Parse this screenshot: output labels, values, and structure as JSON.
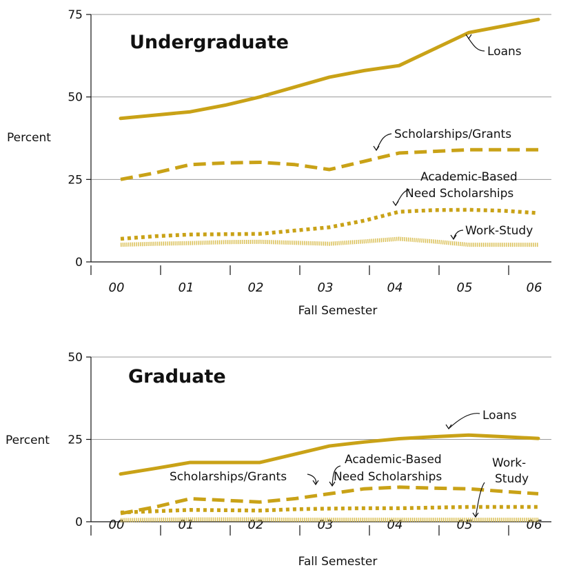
{
  "colors": {
    "gold": "#C9A217",
    "workstudy": "#D8BC4C",
    "grid": "#9a9a9a",
    "text": "#111111"
  },
  "chart_data": [
    {
      "type": "line",
      "title": "Undergraduate",
      "xlabel": "Fall Semester",
      "ylabel": "Percent",
      "categories": [
        "00",
        "01",
        "02",
        "03",
        "04",
        "05",
        "06"
      ],
      "yticks": [
        "0",
        "25",
        "50",
        "75"
      ],
      "ylim": [
        0,
        75
      ],
      "grid": true,
      "series": [
        {
          "name": "Loans",
          "label": "Loans",
          "style": "solid",
          "x": [
            0,
            0.5,
            1,
            1.5,
            2,
            2.5,
            3,
            3.5,
            4,
            4.5,
            5,
            5.5,
            6
          ],
          "values": [
            43.5,
            44.5,
            45.5,
            47.5,
            50,
            53,
            56,
            58,
            59.5,
            64.5,
            69.5,
            71.5,
            73.5
          ]
        },
        {
          "name": "Scholarships/Grants",
          "label": "Scholarships/Grants",
          "style": "dashed",
          "x": [
            0,
            0.5,
            1,
            1.5,
            2,
            2.5,
            3,
            3.5,
            4,
            4.5,
            5,
            5.5,
            6
          ],
          "values": [
            25,
            27,
            29.5,
            30,
            30.2,
            29.5,
            28,
            30.5,
            33,
            33.5,
            34,
            34,
            34
          ]
        },
        {
          "name": "Academic-Based Need Scholarships",
          "label_lines": [
            "Academic-Based",
            "Need Scholarships"
          ],
          "style": "dotted",
          "x": [
            0,
            0.5,
            1,
            1.5,
            2,
            2.5,
            3,
            3.5,
            4,
            4.5,
            5,
            5.5,
            6
          ],
          "values": [
            7,
            7.8,
            8.3,
            8.4,
            8.5,
            9.5,
            10.5,
            12.5,
            15.2,
            15.7,
            15.8,
            15.5,
            14.8
          ]
        },
        {
          "name": "Work-Study",
          "label": "Work-Study",
          "style": "hatched",
          "x": [
            0,
            0.5,
            1,
            1.5,
            2,
            2.5,
            3,
            3.5,
            4,
            4.5,
            5,
            5.5,
            6
          ],
          "values": [
            5.2,
            5.5,
            5.7,
            6,
            6.1,
            5.8,
            5.5,
            6.2,
            7,
            6.2,
            5.2,
            5.2,
            5.2
          ]
        }
      ]
    },
    {
      "type": "line",
      "title": "Graduate",
      "xlabel": "Fall Semester",
      "ylabel": "Percent",
      "categories": [
        "00",
        "01",
        "02",
        "03",
        "04",
        "05",
        "06"
      ],
      "yticks": [
        "0",
        "25",
        "50"
      ],
      "ylim": [
        0,
        50
      ],
      "grid": true,
      "series": [
        {
          "name": "Loans",
          "label": "Loans",
          "style": "solid",
          "x": [
            0,
            0.5,
            1,
            1.5,
            2,
            2.5,
            3,
            3.5,
            4,
            4.5,
            5,
            5.5,
            6
          ],
          "values": [
            14.5,
            16.2,
            18,
            18,
            18,
            20.5,
            23,
            24.2,
            25.2,
            25.8,
            26.3,
            25.8,
            25.3
          ]
        },
        {
          "name": "Scholarships/Grants",
          "label": "Scholarships/Grants",
          "style": "dashed",
          "x": [
            0,
            0.5,
            1,
            1.5,
            2,
            2.5,
            3,
            3.5,
            4,
            4.5,
            5,
            5.5,
            6
          ],
          "values": [
            2.5,
            4.5,
            7,
            6.5,
            6,
            7,
            8.5,
            10,
            10.5,
            10.2,
            10,
            9.2,
            8.5
          ]
        },
        {
          "name": "Academic-Based Need Scholarships",
          "label_lines": [
            "Academic-Based",
            "Need Scholarships"
          ],
          "style": "dotted",
          "x": [
            0,
            0.5,
            1,
            1.5,
            2,
            2.5,
            3,
            3.5,
            4,
            4.5,
            5,
            5.5,
            6
          ],
          "values": [
            2.8,
            3.2,
            3.6,
            3.5,
            3.4,
            3.8,
            4,
            4.1,
            4.1,
            4.3,
            4.5,
            4.5,
            4.5
          ]
        },
        {
          "name": "Work-Study",
          "label_lines": [
            "Work-",
            "Study"
          ],
          "style": "hatched",
          "x": [
            0,
            0.5,
            1,
            1.5,
            2,
            2.5,
            3,
            3.5,
            4,
            4.5,
            5,
            5.5,
            6
          ],
          "values": [
            0.5,
            0.6,
            0.7,
            0.7,
            0.7,
            0.6,
            0.6,
            0.6,
            0.6,
            0.6,
            0.6,
            0.6,
            0.6
          ]
        }
      ]
    }
  ]
}
